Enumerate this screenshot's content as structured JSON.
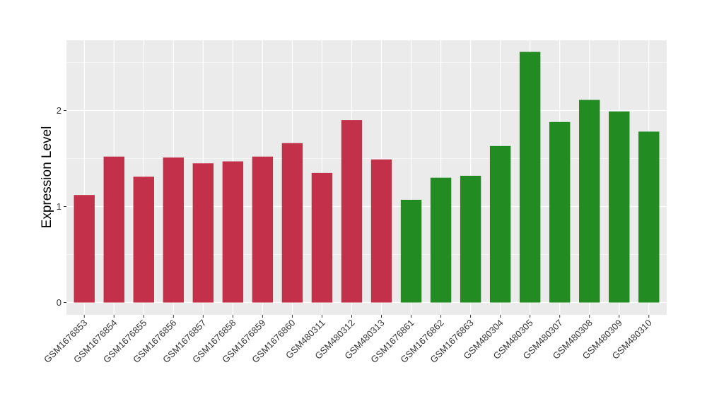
{
  "chart_data": {
    "type": "bar",
    "title": "",
    "xlabel": "",
    "ylabel": "Expression Level",
    "ylim": [
      0,
      2.74
    ],
    "yticks": [
      0,
      1,
      2
    ],
    "grid": true,
    "categories": [
      "GSM1676853",
      "GSM1676854",
      "GSM1676855",
      "GSM1676856",
      "GSM1676857",
      "GSM1676858",
      "GSM1676859",
      "GSM1676860",
      "GSM480311",
      "GSM480312",
      "GSM480313",
      "GSM1676861",
      "GSM1676862",
      "GSM1676863",
      "GSM480304",
      "GSM480305",
      "GSM480307",
      "GSM480308",
      "GSM480309",
      "GSM480310"
    ],
    "values": [
      1.12,
      1.52,
      1.31,
      1.51,
      1.45,
      1.47,
      1.52,
      1.66,
      1.35,
      1.9,
      1.49,
      1.07,
      1.3,
      1.32,
      1.63,
      2.61,
      1.88,
      2.11,
      1.99,
      1.78
    ],
    "colors": [
      "#C3304A",
      "#C3304A",
      "#C3304A",
      "#C3304A",
      "#C3304A",
      "#C3304A",
      "#C3304A",
      "#C3304A",
      "#C3304A",
      "#C3304A",
      "#C3304A",
      "#228B22",
      "#228B22",
      "#228B22",
      "#228B22",
      "#228B22",
      "#228B22",
      "#228B22",
      "#228B22",
      "#228B22"
    ],
    "panel_background": "#EBEBEB",
    "grid_color": "#FFFFFF"
  }
}
